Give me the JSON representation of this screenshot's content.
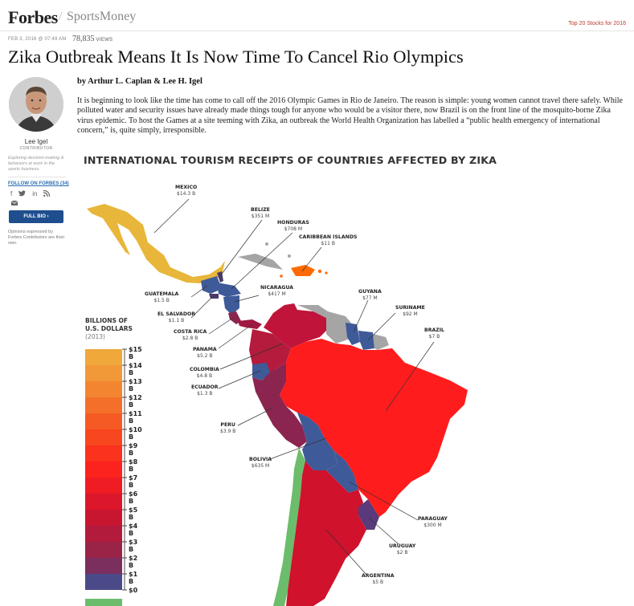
{
  "header": {
    "logo": "Forbes",
    "slash": "/",
    "section": "SportsMoney",
    "top_link": "Top 20 Stocks for 2016"
  },
  "article": {
    "date": "FEB 3, 2016 @ 07:49 AM",
    "views_count": "78,835",
    "views_label": "VIEWS",
    "title": "Zika Outbreak Means It Is Now Time To Cancel Rio Olympics",
    "byline": "by Arthur L. Caplan & Lee H. Igel",
    "body": "It is beginning to look like the time has come to call off the 2016 Olympic Games in Rio de Janeiro. The reason is simple: young women cannot travel there safely. While polluted water and security issues have already made things tough for anyone who would be a visitor there, now Brazil is on the front line of the mosquito-borne Zika virus epidemic. To host the Games at a site teeming with Zika, an outbreak the World Health Organization has labelled a “public health emergency of international concern,” is, quite simply, irresponsible."
  },
  "author": {
    "name": "Lee Igel",
    "role": "CONTRIBUTOR",
    "description": "Exploring decision-making & behaviors at work in the sports business.",
    "follow": "FOLLOW ON FORBES (34)",
    "social_icons": [
      "facebook-icon",
      "twitter-icon",
      "linkedin-icon",
      "rss-icon"
    ],
    "mail_icon": "mail-icon",
    "full_bio": "FULL BIO ›",
    "disclaimer": "Opinions expressed by Forbes Contributors are their own."
  },
  "infographic": {
    "title": "INTERNATIONAL TOURISM RECEIPTS OF COUNTRIES AFFECTED BY ZIKA",
    "legend_title_1": "BILLIONS OF",
    "legend_title_2": "U.S. DOLLARS",
    "legend_year": "(2013)",
    "scale_ticks": [
      "$15 B",
      "$14 B",
      "$13 B",
      "$12 B",
      "$11 B",
      "$10 B",
      "$9 B",
      "$8 B",
      "$7 B",
      "$6 B",
      "$5 B",
      "$4 B",
      "$3 B",
      "$2 B",
      "$1 B",
      "$0"
    ],
    "colors": {
      "mexico": "#e8b63a",
      "brazil": "#ff1c1c",
      "argentina": "#d0122c",
      "colombia": "#b41b3d",
      "venezuela": "#c0143a",
      "peru": "#8b2550",
      "bolivia": "#3e5a98",
      "paraguay": "#3e5a98",
      "guyana": "#3e5a98",
      "suriname": "#3e5a98",
      "uruguay": "#5a3a7a",
      "central": "#3e5a98",
      "caribbean": "#ff6a00",
      "chile": "#6bbd6b",
      "no_data": "#a5a5a5"
    },
    "countries": [
      {
        "name": "MEXICO",
        "value": "$14.3 B"
      },
      {
        "name": "BELIZE",
        "value": "$351 M"
      },
      {
        "name": "HONDURAS",
        "value": "$708 M"
      },
      {
        "name": "CARIBBEAN ISLANDS",
        "value": "$11 B"
      },
      {
        "name": "GUATEMALA",
        "value": "$1.5 B"
      },
      {
        "name": "NICARAGUA",
        "value": "$417 M"
      },
      {
        "name": "EL SALVADOR",
        "value": "$1.1 B"
      },
      {
        "name": "COSTA RICA",
        "value": "$2.8 B"
      },
      {
        "name": "PANAMA",
        "value": "$5.2 B"
      },
      {
        "name": "COLOMBIA",
        "value": "$4.8 B"
      },
      {
        "name": "ECUADOR",
        "value": "$1.3 B"
      },
      {
        "name": "PERU",
        "value": "$3.9 B"
      },
      {
        "name": "BOLIVIA",
        "value": "$635 M"
      },
      {
        "name": "GUYANA",
        "value": "$77 M"
      },
      {
        "name": "SURINAME",
        "value": "$92 M"
      },
      {
        "name": "BRAZIL",
        "value": "$7 B"
      },
      {
        "name": "PARAGUAY",
        "value": "$300 M"
      },
      {
        "name": "URUGUAY",
        "value": "$2 B"
      },
      {
        "name": "ARGENTINA",
        "value": "$5 B"
      }
    ]
  }
}
